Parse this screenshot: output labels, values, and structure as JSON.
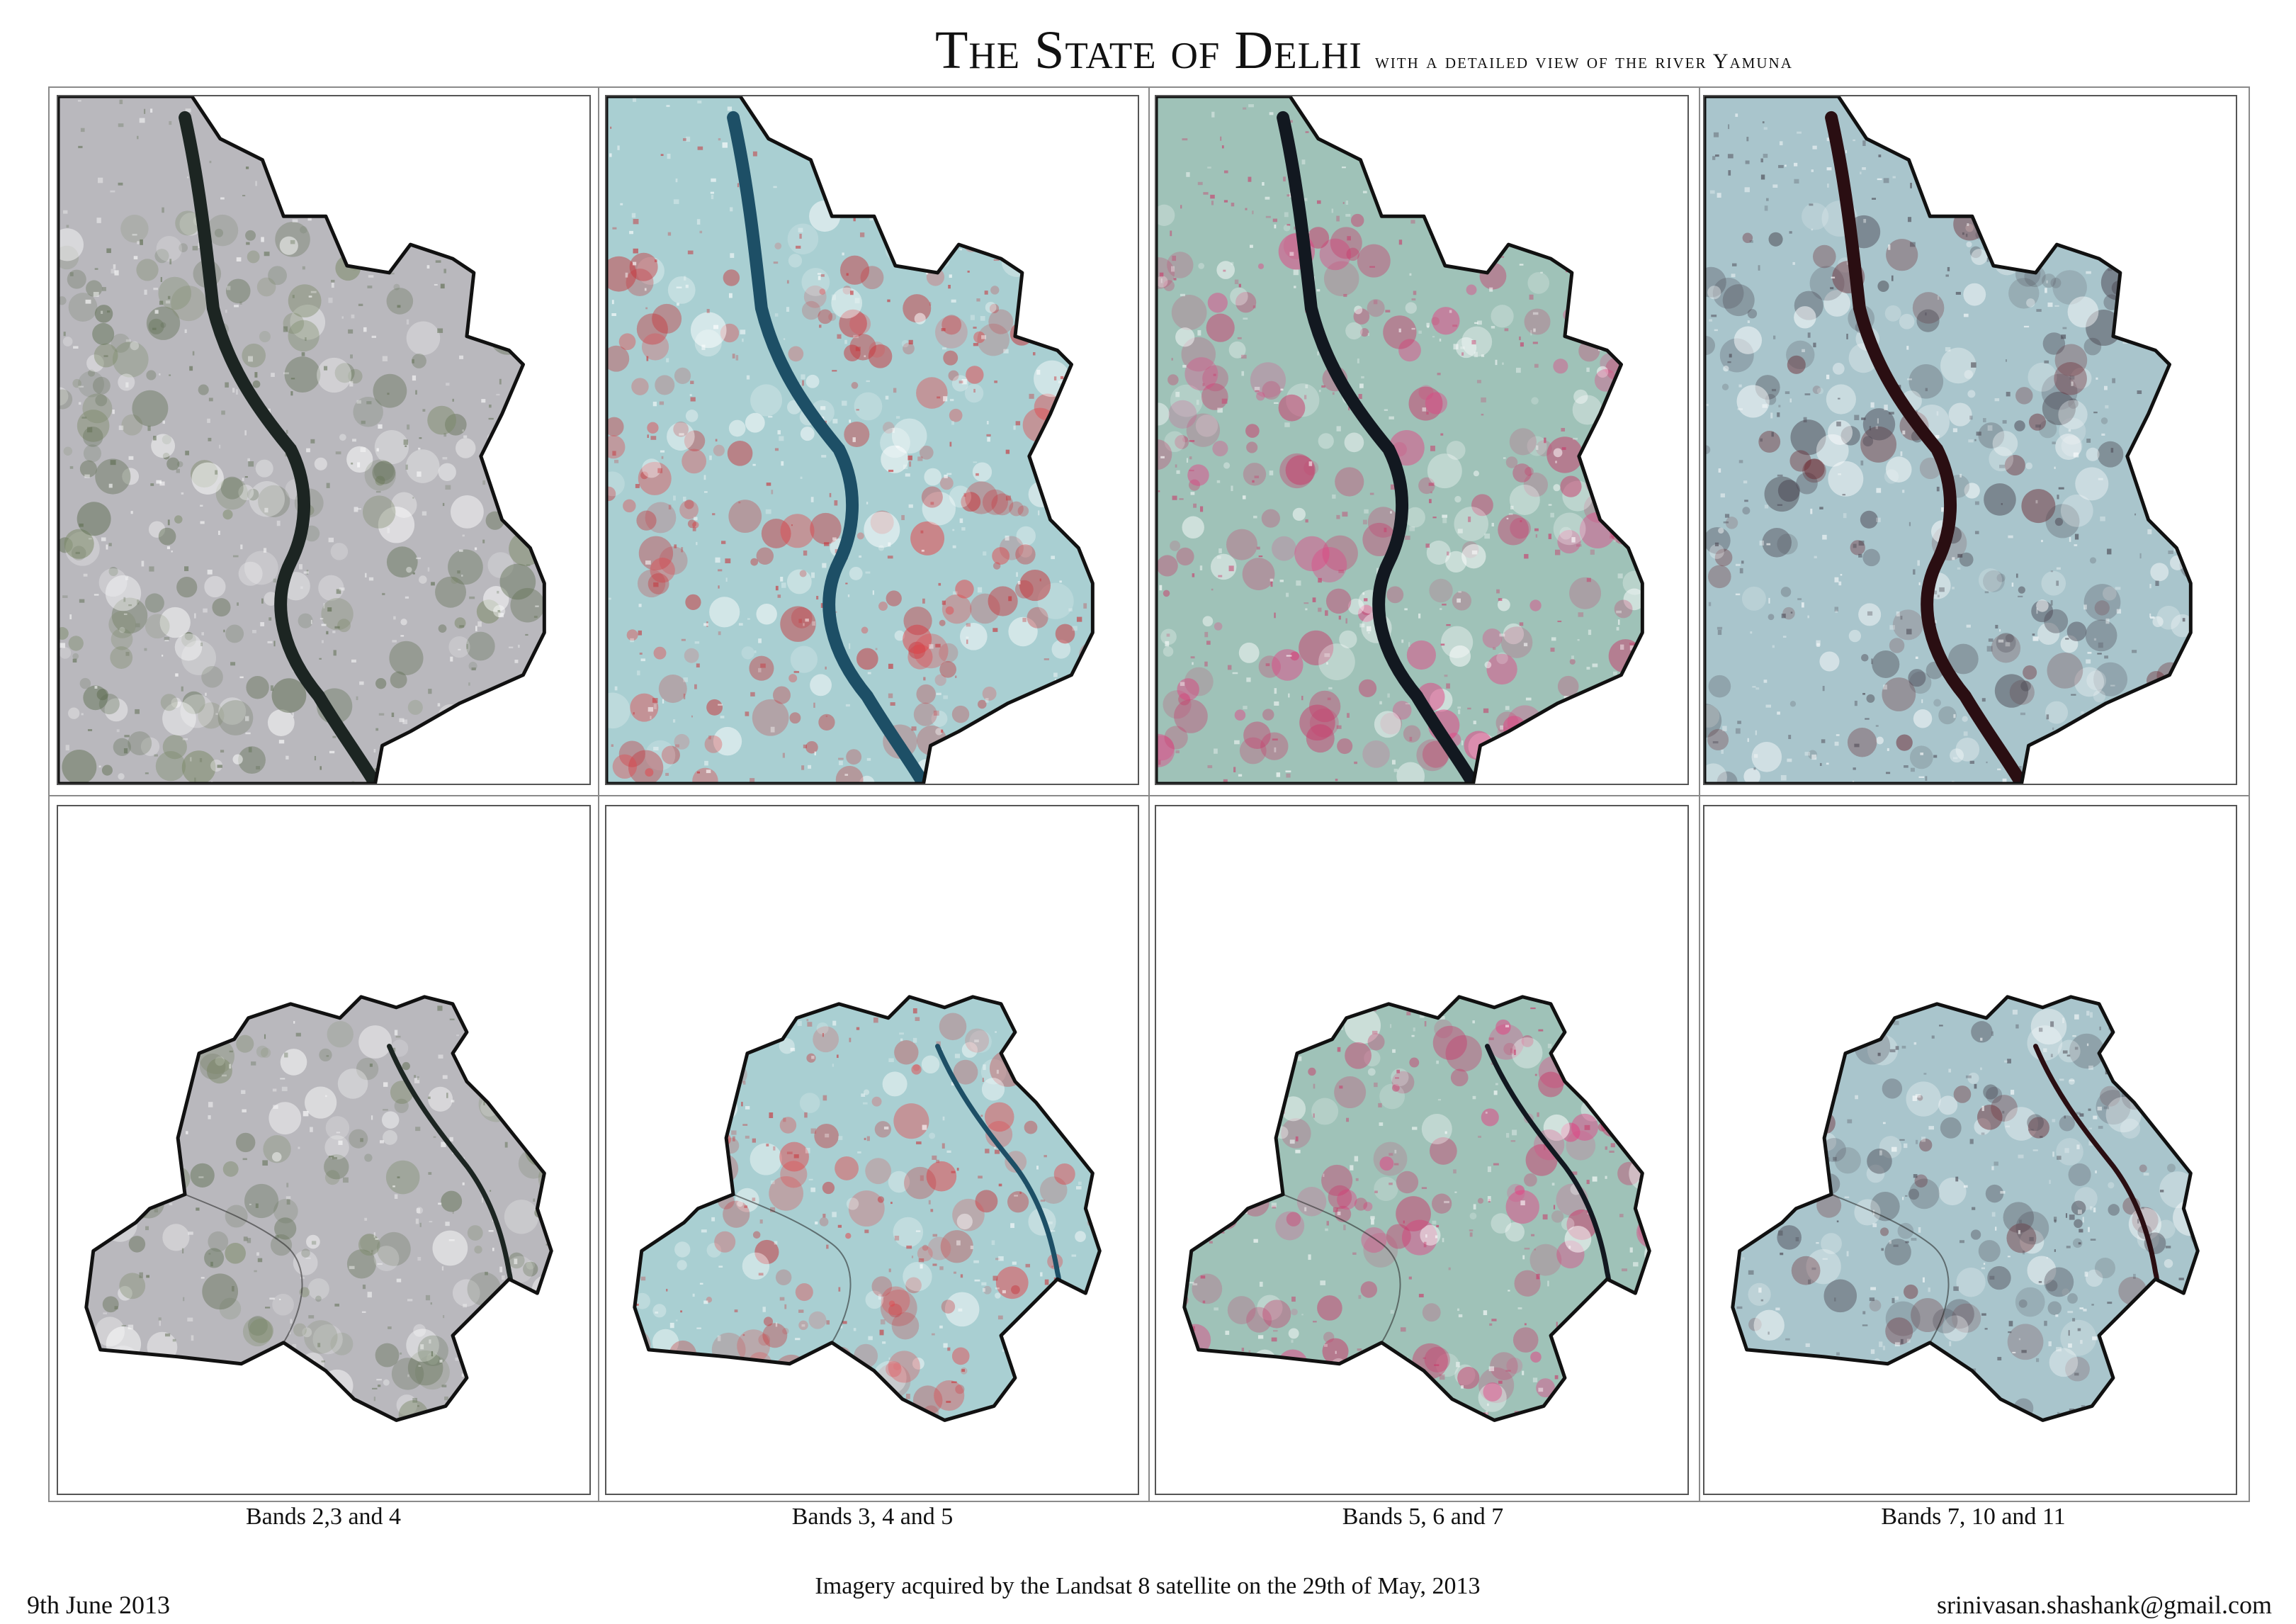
{
  "header": {
    "title": "The State of Delhi",
    "subtitle": "with a detailed view of the river Yamuna"
  },
  "panels": [
    {
      "caption": "Bands 2,3 and 4",
      "scheme": {
        "base": "#b9b8bd",
        "dark": "#5f6e52",
        "accent": "#7a8866",
        "river": "#1c2522",
        "edge": "#111111"
      }
    },
    {
      "caption": "Bands 3, 4 and 5",
      "scheme": {
        "base": "#a9cfd2",
        "dark": "#c8343a",
        "accent": "#e64247",
        "river": "#1d4f66",
        "edge": "#111111"
      }
    },
    {
      "caption": "Bands 5, 6 and 7",
      "scheme": {
        "base": "#9fc2b8",
        "dark": "#c93a6a",
        "accent": "#e43f82",
        "river": "#121820",
        "edge": "#111111"
      }
    },
    {
      "caption": "Bands 7, 10 and  11",
      "scheme": {
        "base": "#a9c5cc",
        "dark": "#4b4752",
        "accent": "#6e2a33",
        "river": "#2a0e12",
        "edge": "#111111"
      }
    }
  ],
  "footer": {
    "date": "9th June 2013",
    "acquisition": "Imagery acquired by the Landsat 8 satellite on the 29th of May, 2013",
    "email": "srinivasan.shashank@gmail.com"
  }
}
